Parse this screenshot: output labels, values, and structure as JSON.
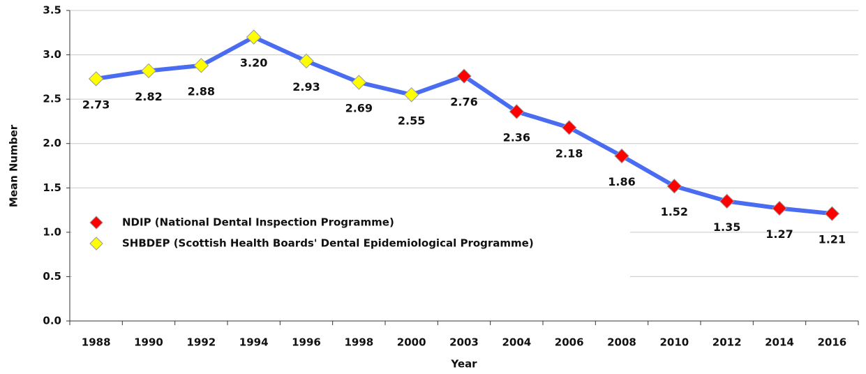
{
  "chart_data": {
    "type": "line",
    "categories": [
      "1988",
      "1990",
      "1992",
      "1994",
      "1996",
      "1998",
      "2000",
      "2003",
      "2004",
      "2006",
      "2008",
      "2010",
      "2012",
      "2014",
      "2016"
    ],
    "x_label": "Year",
    "y_label": "Mean Number",
    "line_color": "#4a6cf0",
    "series": [
      {
        "name": "NDIP (National Dental Inspection Programme)",
        "color": "#ff0000",
        "values": [
          null,
          null,
          null,
          null,
          null,
          null,
          null,
          2.76,
          2.36,
          2.18,
          1.86,
          1.52,
          1.35,
          1.27,
          1.21
        ]
      },
      {
        "name": "SHBDEP (Scottish Health Boards' Dental Epidemiological Programme)",
        "color": "#ffff00",
        "values": [
          2.73,
          2.82,
          2.88,
          3.2,
          2.93,
          2.69,
          2.55,
          null,
          null,
          null,
          null,
          null,
          null,
          null,
          null
        ],
        "value_labels": [
          "2.73",
          "2.82",
          "2.88",
          "3.20",
          "2.93",
          "2.69",
          "2.55",
          null,
          null,
          null,
          null,
          null,
          null,
          null,
          null
        ]
      }
    ],
    "ylim": [
      0,
      3.5
    ],
    "yticks": [
      {
        "value": 0,
        "label": "0.0"
      },
      0.5,
      {
        "value": 1,
        "label": "1.0"
      },
      1.5,
      {
        "value": 2,
        "label": "2.0"
      },
      2.5,
      {
        "value": 3,
        "label": "3.0"
      },
      3.5
    ],
    "grid": true,
    "legend": "left"
  }
}
